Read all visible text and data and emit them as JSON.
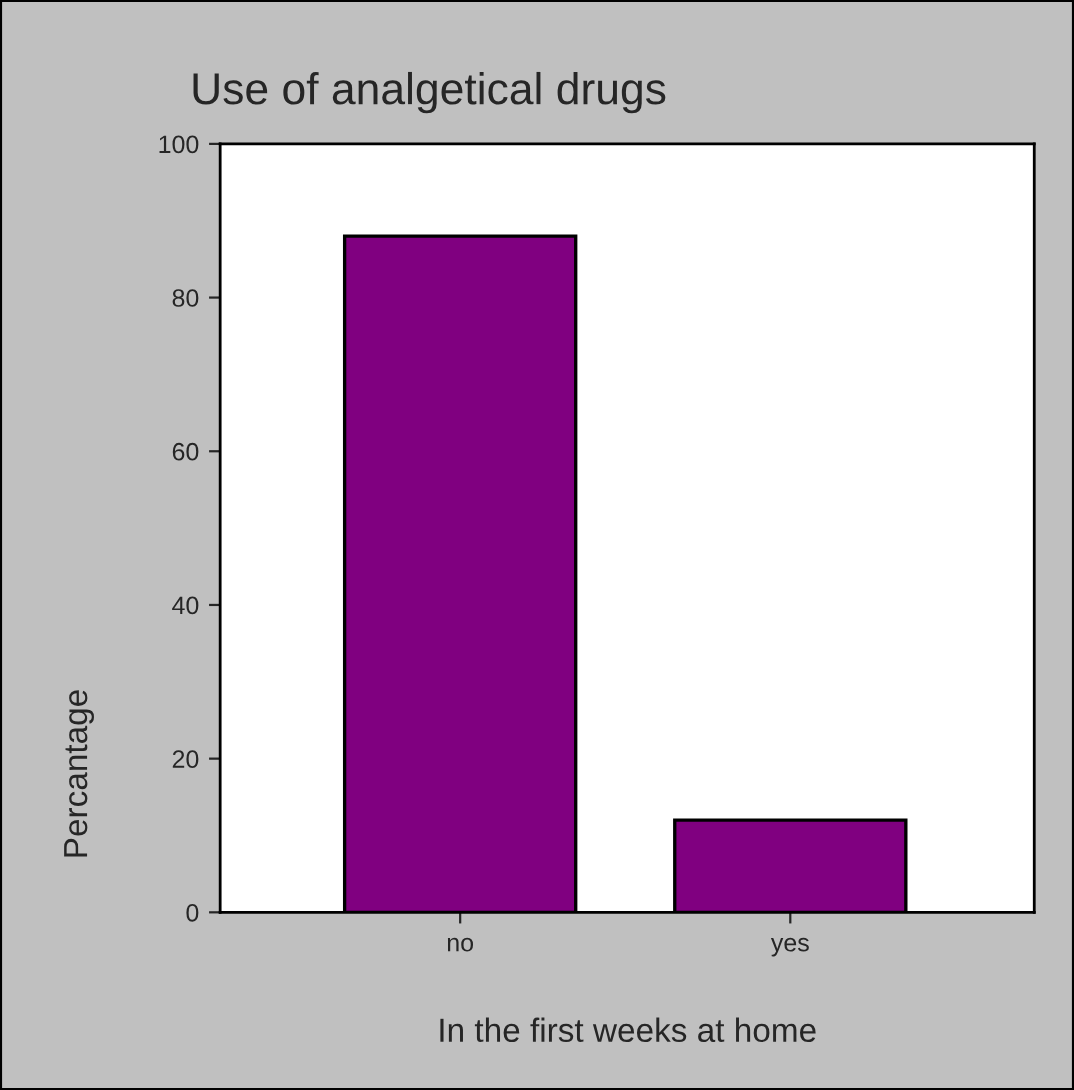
{
  "chart_data": {
    "type": "bar",
    "title": "Use of analgetical drugs",
    "xlabel": "In the first weeks at home",
    "ylabel": "Percantage",
    "categories": [
      "no",
      "yes"
    ],
    "values": [
      88,
      12
    ],
    "color": "#800080",
    "ylim": [
      0,
      100
    ],
    "yticks": [
      0,
      20,
      40,
      60,
      80,
      100
    ],
    "grid": false,
    "legend": false
  }
}
